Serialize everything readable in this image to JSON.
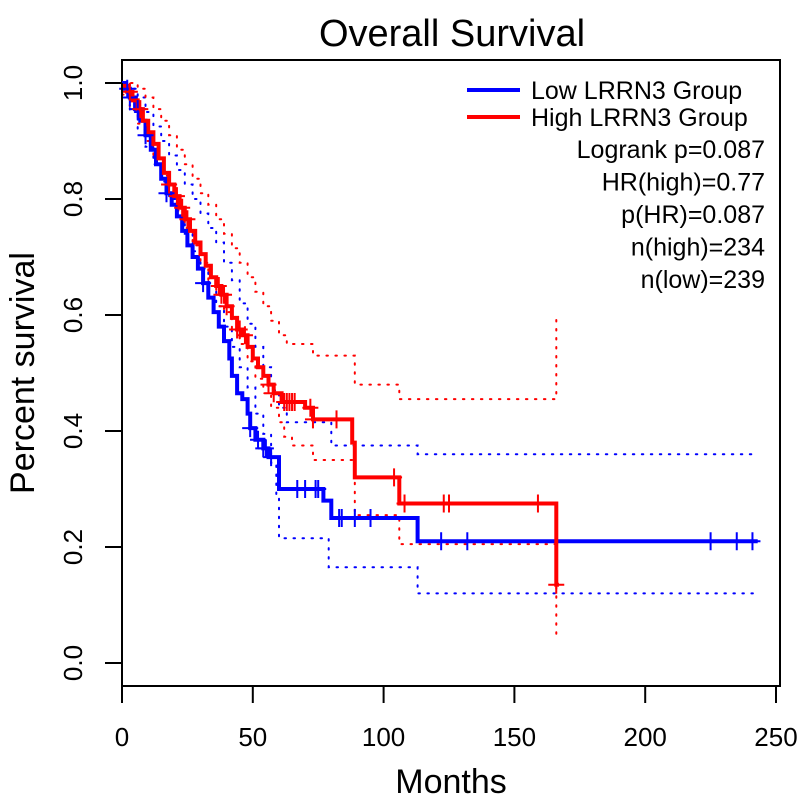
{
  "chart_data": {
    "type": "line",
    "subtype": "kaplan-meier",
    "title": "Overall Survival",
    "xlabel": "Months",
    "ylabel": "Percent survival",
    "xlim": [
      0,
      250
    ],
    "ylim": [
      0,
      1
    ],
    "xticks": [
      0,
      50,
      100,
      150,
      200,
      250
    ],
    "xtick_labels": [
      "0",
      "50",
      "100",
      "150",
      "200",
      "250"
    ],
    "yticks": [
      0,
      0.2,
      0.4,
      0.6,
      0.8,
      1.0
    ],
    "ytick_labels": [
      "0.0",
      "0.2",
      "0.4",
      "0.6",
      "0.8",
      "1.0"
    ],
    "grid": false,
    "legend": {
      "placement": "top-right",
      "entries": [
        {
          "label": "Low LRRN3 Group",
          "color": "#0000ff"
        },
        {
          "label": "High LRRN3 Group",
          "color": "#ff0000"
        }
      ],
      "stats": [
        "Logrank p=0.087",
        "HR(high)=0.77",
        "p(HR)=0.087",
        "n(high)=234",
        "n(low)=239"
      ]
    },
    "series": [
      {
        "name": "Low LRRN3 Group",
        "color": "#0000ff",
        "steps": [
          [
            0,
            1.0
          ],
          [
            1,
            0.99
          ],
          [
            3,
            0.975
          ],
          [
            5,
            0.955
          ],
          [
            7,
            0.935
          ],
          [
            9,
            0.91
          ],
          [
            11,
            0.885
          ],
          [
            13,
            0.86
          ],
          [
            15,
            0.835
          ],
          [
            17,
            0.81
          ],
          [
            19,
            0.79
          ],
          [
            21,
            0.77
          ],
          [
            23,
            0.745
          ],
          [
            25,
            0.72
          ],
          [
            27,
            0.7
          ],
          [
            29,
            0.68
          ],
          [
            31,
            0.655
          ],
          [
            33,
            0.63
          ],
          [
            35,
            0.605
          ],
          [
            37,
            0.58
          ],
          [
            39,
            0.555
          ],
          [
            41,
            0.525
          ],
          [
            42,
            0.495
          ],
          [
            44,
            0.465
          ],
          [
            46,
            0.455
          ],
          [
            48,
            0.43
          ],
          [
            49,
            0.405
          ],
          [
            51,
            0.385
          ],
          [
            54,
            0.37
          ],
          [
            56,
            0.355
          ],
          [
            60,
            0.3
          ],
          [
            77,
            0.28
          ],
          [
            80,
            0.25
          ],
          [
            113,
            0.21
          ],
          [
            243,
            0.21
          ]
        ],
        "censor_times": [
          2,
          3,
          6,
          9,
          17,
          31,
          49,
          52,
          54,
          55,
          57,
          67,
          70,
          74,
          75,
          83,
          84,
          89,
          95,
          122,
          132,
          225,
          235,
          241
        ],
        "ci_upper": [
          [
            0,
            1.0
          ],
          [
            3,
            0.99
          ],
          [
            6,
            0.975
          ],
          [
            9,
            0.95
          ],
          [
            12,
            0.925
          ],
          [
            15,
            0.9
          ],
          [
            18,
            0.875
          ],
          [
            21,
            0.85
          ],
          [
            24,
            0.825
          ],
          [
            27,
            0.8
          ],
          [
            30,
            0.775
          ],
          [
            33,
            0.75
          ],
          [
            36,
            0.725
          ],
          [
            39,
            0.69
          ],
          [
            42,
            0.66
          ],
          [
            45,
            0.62
          ],
          [
            48,
            0.585
          ],
          [
            51,
            0.545
          ],
          [
            54,
            0.51
          ],
          [
            57,
            0.47
          ],
          [
            60,
            0.44
          ],
          [
            63,
            0.415
          ],
          [
            77,
            0.415
          ],
          [
            80,
            0.375
          ],
          [
            112,
            0.375
          ],
          [
            113,
            0.36
          ],
          [
            242,
            0.36
          ]
        ],
        "ci_lower": [
          [
            0,
            0.99
          ],
          [
            3,
            0.95
          ],
          [
            6,
            0.92
          ],
          [
            9,
            0.89
          ],
          [
            12,
            0.86
          ],
          [
            15,
            0.83
          ],
          [
            18,
            0.8
          ],
          [
            21,
            0.77
          ],
          [
            24,
            0.74
          ],
          [
            27,
            0.71
          ],
          [
            30,
            0.68
          ],
          [
            33,
            0.65
          ],
          [
            36,
            0.615
          ],
          [
            39,
            0.58
          ],
          [
            42,
            0.545
          ],
          [
            45,
            0.51
          ],
          [
            48,
            0.475
          ],
          [
            51,
            0.43
          ],
          [
            54,
            0.395
          ],
          [
            57,
            0.345
          ],
          [
            59,
            0.29
          ],
          [
            60,
            0.215
          ],
          [
            77,
            0.215
          ],
          [
            79,
            0.165
          ],
          [
            112,
            0.165
          ],
          [
            113,
            0.12
          ],
          [
            242,
            0.12
          ]
        ]
      },
      {
        "name": "High LRRN3 Group",
        "color": "#ff0000",
        "steps": [
          [
            0,
            0.995
          ],
          [
            2,
            0.985
          ],
          [
            4,
            0.97
          ],
          [
            6,
            0.955
          ],
          [
            8,
            0.935
          ],
          [
            10,
            0.915
          ],
          [
            12,
            0.895
          ],
          [
            14,
            0.87
          ],
          [
            16,
            0.845
          ],
          [
            18,
            0.825
          ],
          [
            20,
            0.805
          ],
          [
            22,
            0.785
          ],
          [
            24,
            0.765
          ],
          [
            26,
            0.745
          ],
          [
            28,
            0.725
          ],
          [
            30,
            0.705
          ],
          [
            32,
            0.685
          ],
          [
            34,
            0.665
          ],
          [
            36,
            0.65
          ],
          [
            38,
            0.635
          ],
          [
            40,
            0.615
          ],
          [
            42,
            0.595
          ],
          [
            44,
            0.575
          ],
          [
            46,
            0.565
          ],
          [
            48,
            0.545
          ],
          [
            50,
            0.525
          ],
          [
            52,
            0.51
          ],
          [
            54,
            0.495
          ],
          [
            56,
            0.48
          ],
          [
            58,
            0.465
          ],
          [
            61,
            0.45
          ],
          [
            70,
            0.44
          ],
          [
            73,
            0.42
          ],
          [
            88,
            0.38
          ],
          [
            89,
            0.32
          ],
          [
            105,
            0.32
          ],
          [
            106,
            0.275
          ],
          [
            166,
            0.275
          ],
          [
            166,
            0.135
          ],
          [
            167,
            0.135
          ]
        ],
        "censor_times": [
          3,
          7,
          18,
          21,
          23,
          25,
          37,
          38,
          39,
          40,
          44,
          45,
          47,
          56,
          58,
          62,
          63,
          64,
          65,
          66,
          72,
          73,
          82,
          104,
          108,
          123,
          125,
          159,
          166
        ],
        "ci_upper": [
          [
            0,
            1.0
          ],
          [
            3,
            1.0
          ],
          [
            6,
            0.99
          ],
          [
            9,
            0.975
          ],
          [
            12,
            0.955
          ],
          [
            15,
            0.935
          ],
          [
            18,
            0.91
          ],
          [
            21,
            0.885
          ],
          [
            24,
            0.86
          ],
          [
            27,
            0.835
          ],
          [
            30,
            0.81
          ],
          [
            33,
            0.79
          ],
          [
            36,
            0.765
          ],
          [
            39,
            0.74
          ],
          [
            42,
            0.715
          ],
          [
            45,
            0.69
          ],
          [
            48,
            0.665
          ],
          [
            51,
            0.64
          ],
          [
            54,
            0.615
          ],
          [
            57,
            0.59
          ],
          [
            60,
            0.565
          ],
          [
            63,
            0.55
          ],
          [
            70,
            0.55
          ],
          [
            73,
            0.53
          ],
          [
            88,
            0.53
          ],
          [
            89,
            0.48
          ],
          [
            105,
            0.48
          ],
          [
            106,
            0.455
          ],
          [
            166,
            0.455
          ],
          [
            166,
            0.595
          ]
        ],
        "ci_lower": [
          [
            0,
            0.98
          ],
          [
            3,
            0.955
          ],
          [
            6,
            0.93
          ],
          [
            9,
            0.9
          ],
          [
            12,
            0.87
          ],
          [
            15,
            0.84
          ],
          [
            18,
            0.81
          ],
          [
            21,
            0.78
          ],
          [
            24,
            0.75
          ],
          [
            27,
            0.72
          ],
          [
            30,
            0.69
          ],
          [
            33,
            0.66
          ],
          [
            36,
            0.635
          ],
          [
            39,
            0.605
          ],
          [
            42,
            0.575
          ],
          [
            45,
            0.55
          ],
          [
            48,
            0.52
          ],
          [
            51,
            0.49
          ],
          [
            54,
            0.465
          ],
          [
            57,
            0.44
          ],
          [
            60,
            0.415
          ],
          [
            62,
            0.39
          ],
          [
            65,
            0.375
          ],
          [
            71,
            0.375
          ],
          [
            73,
            0.35
          ],
          [
            88,
            0.35
          ],
          [
            89,
            0.255
          ],
          [
            105,
            0.255
          ],
          [
            106,
            0.205
          ],
          [
            166,
            0.205
          ],
          [
            166,
            0.04
          ]
        ]
      }
    ]
  }
}
